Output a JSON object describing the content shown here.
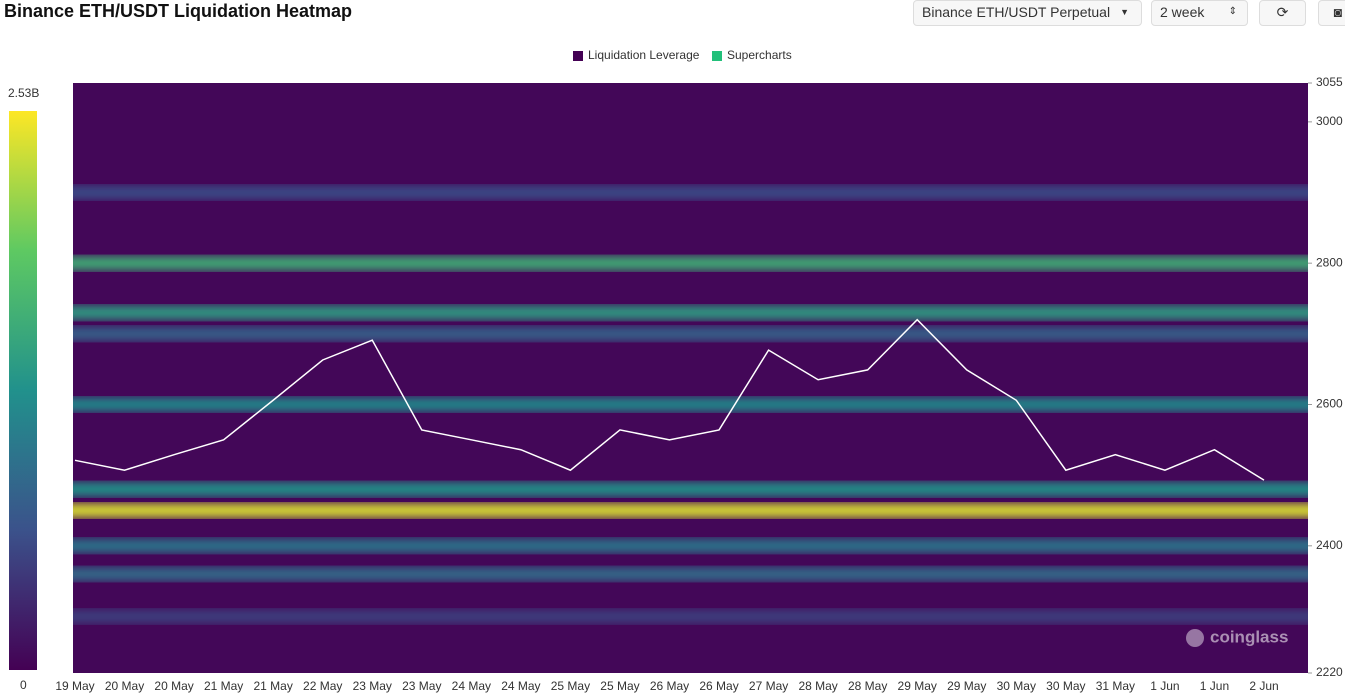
{
  "header": {
    "title": "Binance ETH/USDT Liquidation Heatmap",
    "pair_select": "Binance ETH/USDT Perpetual",
    "range_select": "2 week"
  },
  "watermark": "coinglass",
  "chart_data": {
    "type": "heatmap",
    "legend": [
      "Liquidation Leverage",
      "Supercharts"
    ],
    "legend_colors": [
      "#440154",
      "#22c07a"
    ],
    "categories": [
      "19 May",
      "20 May",
      "20 May",
      "21 May",
      "21 May",
      "22 May",
      "23 May",
      "23 May",
      "24 May",
      "24 May",
      "25 May",
      "25 May",
      "26 May",
      "26 May",
      "27 May",
      "28 May",
      "28 May",
      "29 May",
      "29 May",
      "30 May",
      "30 May",
      "31 May",
      "1 Jun",
      "1 Jun",
      "2 Jun"
    ],
    "series": [
      {
        "name": "Price",
        "color": "#ffffff",
        "values": [
          2521,
          2507,
          2529,
          2550,
          2606,
          2663,
          2691,
          2564,
          2550,
          2536,
          2507,
          2564,
          2550,
          2564,
          2677,
          2635,
          2649,
          2720,
          2649,
          2606,
          2507,
          2529,
          2507,
          2536,
          2493
        ]
      }
    ],
    "levels": {
      "prices": [
        2900,
        2800,
        2730,
        2700,
        2600,
        2480,
        2450,
        2400,
        2360,
        2300
      ],
      "values": [
        600000000,
        1600000000,
        1400000000,
        800000000,
        1200000000,
        1300000000,
        2400000000,
        1000000000,
        900000000,
        500000000
      ]
    },
    "ylim": [
      2220,
      3055
    ],
    "yticks": [
      2220,
      2400,
      2600,
      2800,
      3000,
      3055
    ],
    "colorbar_lim": [
      0,
      2530000000
    ],
    "colorbar_ticks": [
      {
        "value": 0,
        "label": "0"
      },
      {
        "value": 2530000000,
        "label": "2.53B"
      }
    ]
  }
}
